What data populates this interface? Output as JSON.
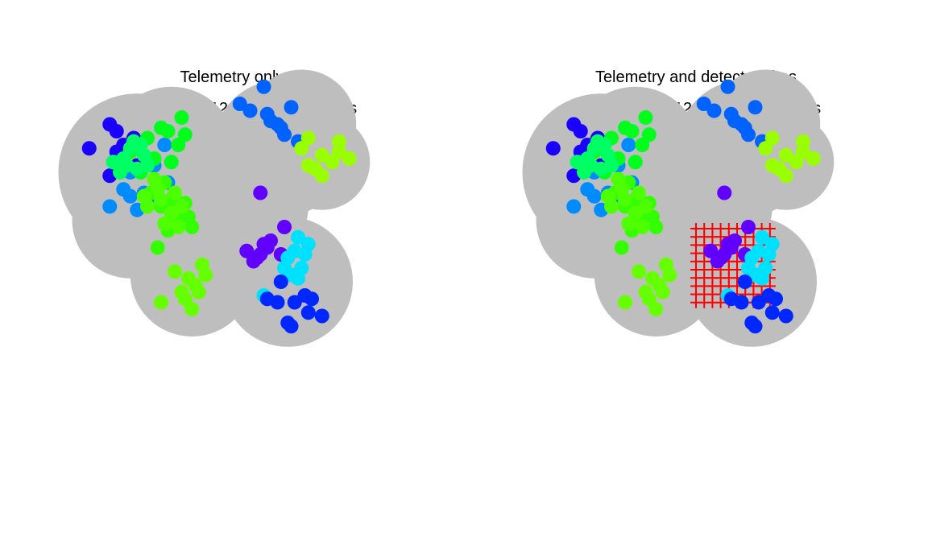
{
  "chart_data": [
    {
      "type": "scatter",
      "title": "Telemetry only",
      "subtitle": "10 occasions, 120 fixes,12 animals",
      "show_detectors": false
    },
    {
      "type": "scatter",
      "title": "Telemetry and detector sites",
      "subtitle": "10 occasions, 120 fixes,12 animals",
      "show_detectors": true
    }
  ],
  "shared": {
    "mask_color": "#bebebe",
    "detector_color": "#ff0000",
    "detectors": {
      "rows": 10,
      "cols": 10
    },
    "animals": [
      {
        "color": "#1a00ff",
        "fixes": [
          [
            -3.2,
            6.3
          ],
          [
            -2.4,
            6.8
          ],
          [
            -2.3,
            5.9
          ],
          [
            -1.9,
            6.6
          ],
          [
            -2.6,
            7.0
          ],
          [
            -2.2,
            6.4
          ],
          [
            -1.8,
            5.8
          ],
          [
            -2.6,
            5.5
          ],
          [
            -2.2,
            5.9
          ],
          [
            -2.4,
            6.2
          ]
        ]
      },
      {
        "color": "#008cff",
        "fixes": [
          [
            -2.6,
            4.6
          ],
          [
            -2.2,
            5.1
          ],
          [
            -1.6,
            5.0
          ],
          [
            -2.0,
            4.9
          ],
          [
            -1.8,
            4.5
          ],
          [
            -1.3,
            5.8
          ],
          [
            -1.0,
            6.4
          ],
          [
            -0.9,
            5.3
          ],
          [
            -2.0,
            5.6
          ],
          [
            -1.2,
            4.9
          ]
        ]
      },
      {
        "color": "#00ff1a",
        "fixes": [
          [
            -2.0,
            6.2
          ],
          [
            -1.5,
            6.6
          ],
          [
            -1.1,
            6.9
          ],
          [
            -0.6,
            6.4
          ],
          [
            -1.3,
            6.0
          ],
          [
            -0.8,
            5.9
          ],
          [
            -0.4,
            6.7
          ],
          [
            -0.5,
            7.2
          ],
          [
            -1.7,
            5.6
          ],
          [
            -0.9,
            6.8
          ]
        ]
      },
      {
        "color": "#33ff00",
        "fixes": [
          [
            -1.4,
            5.0
          ],
          [
            -1.0,
            5.3
          ],
          [
            -0.8,
            4.8
          ],
          [
            -0.6,
            4.2
          ],
          [
            -1.1,
            4.6
          ],
          [
            -0.4,
            4.7
          ],
          [
            -0.2,
            4.0
          ],
          [
            -0.9,
            3.9
          ],
          [
            -1.2,
            3.4
          ],
          [
            -0.3,
            4.3
          ]
        ]
      },
      {
        "color": "#66ff00",
        "fixes": [
          [
            -0.7,
            2.7
          ],
          [
            -0.3,
            2.5
          ],
          [
            0.1,
            2.9
          ],
          [
            -0.5,
            2.1
          ],
          [
            -0.1,
            2.3
          ],
          [
            0.2,
            2.6
          ],
          [
            -0.4,
            1.9
          ],
          [
            -0.2,
            1.6
          ],
          [
            -1.1,
            1.8
          ],
          [
            0.0,
            2.1
          ]
        ]
      },
      {
        "color": "#0062ff",
        "fixes": [
          [
            1.5,
            7.4
          ],
          [
            1.9,
            8.1
          ],
          [
            2.1,
            7.1
          ],
          [
            2.5,
            6.7
          ],
          [
            2.7,
            7.5
          ],
          [
            2.3,
            7.0
          ],
          [
            2.9,
            6.5
          ],
          [
            2.4,
            6.9
          ],
          [
            1.2,
            7.6
          ],
          [
            2.0,
            7.3
          ]
        ]
      },
      {
        "color": "#99ff00",
        "fixes": [
          [
            3.2,
            6.6
          ],
          [
            3.6,
            6.1
          ],
          [
            4.1,
            6.2
          ],
          [
            3.9,
            5.9
          ],
          [
            3.4,
            5.7
          ],
          [
            4.4,
            6.0
          ],
          [
            4.1,
            6.5
          ],
          [
            3.6,
            5.5
          ],
          [
            3.0,
            6.3
          ],
          [
            3.2,
            5.8
          ]
        ]
      },
      {
        "color": "#6200ff",
        "fixes": [
          [
            1.8,
            5.0
          ],
          [
            1.4,
            3.3
          ],
          [
            1.8,
            3.2
          ],
          [
            2.1,
            3.6
          ],
          [
            1.6,
            3.0
          ],
          [
            2.4,
            3.2
          ],
          [
            1.9,
            3.5
          ],
          [
            2.5,
            4.0
          ],
          [
            1.7,
            3.1
          ],
          [
            2.0,
            3.4
          ]
        ]
      },
      {
        "color": "#00e1ff",
        "fixes": [
          [
            2.9,
            3.7
          ],
          [
            3.1,
            3.2
          ],
          [
            2.6,
            3.1
          ],
          [
            3.0,
            2.8
          ],
          [
            2.7,
            2.6
          ],
          [
            3.2,
            3.5
          ],
          [
            2.8,
            3.3
          ],
          [
            2.5,
            2.8
          ],
          [
            2.9,
            2.5
          ],
          [
            1.9,
            2.0
          ]
        ]
      },
      {
        "color": "#0027ff",
        "fixes": [
          [
            2.4,
            2.4
          ],
          [
            2.8,
            1.8
          ],
          [
            3.2,
            1.5
          ],
          [
            2.6,
            1.2
          ],
          [
            3.1,
            2.0
          ],
          [
            3.6,
            1.4
          ],
          [
            2.3,
            1.8
          ],
          [
            2.7,
            1.1
          ],
          [
            3.3,
            1.9
          ],
          [
            2.0,
            1.9
          ]
        ]
      },
      {
        "color": "#00ff62",
        "fixes": [
          [
            -2.5,
            5.9
          ],
          [
            -2.0,
            6.3
          ],
          [
            -1.6,
            6.1
          ],
          [
            -1.8,
            5.7
          ],
          [
            -2.2,
            6.0
          ],
          [
            -1.5,
            5.8
          ],
          [
            -1.9,
            6.5
          ],
          [
            -2.3,
            5.6
          ],
          [
            -1.7,
            6.4
          ],
          [
            -2.1,
            5.8
          ]
        ]
      },
      {
        "color": "#4dff00",
        "fixes": [
          [
            -1.5,
            4.6
          ],
          [
            -1.1,
            4.8
          ],
          [
            -0.7,
            5.0
          ],
          [
            -1.3,
            5.4
          ],
          [
            -0.5,
            4.6
          ],
          [
            -1.0,
            4.1
          ],
          [
            -1.6,
            4.9
          ],
          [
            -0.8,
            4.4
          ],
          [
            -1.2,
            5.1
          ],
          [
            -0.6,
            4.0
          ]
        ]
      }
    ]
  }
}
